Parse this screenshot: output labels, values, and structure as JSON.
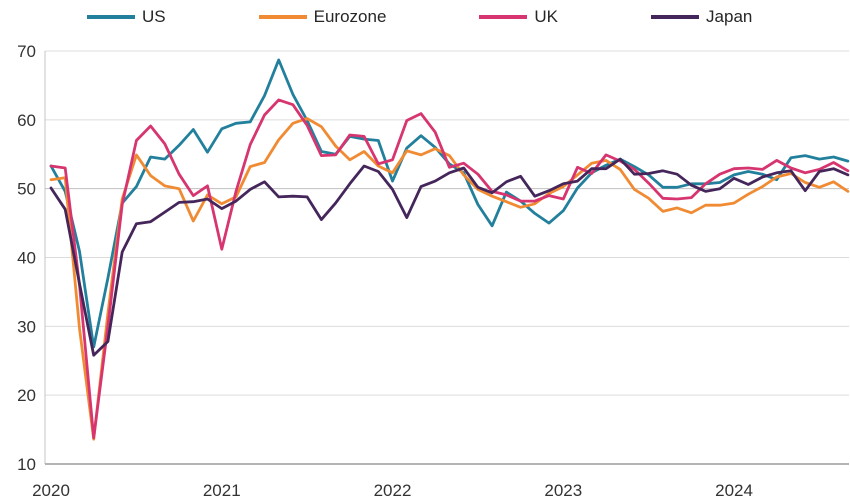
{
  "chart_data": {
    "type": "line",
    "title": "",
    "frequency": "monthly",
    "x_start": "2020-01",
    "x_end": "2024-09",
    "x_tick_labels": [
      "2020",
      "2021",
      "2022",
      "2023",
      "2024"
    ],
    "x_tick_month_indexes": [
      0,
      12,
      24,
      36,
      48
    ],
    "y_ticks": [
      10,
      20,
      30,
      40,
      50,
      60,
      70
    ],
    "ylim": [
      10,
      70
    ],
    "grid": "horizontal",
    "threshold_gridline": 50,
    "legend_position": "top",
    "series": [
      {
        "name": "US",
        "color": "#22809c",
        "values": [
          53.3,
          49.6,
          40.9,
          27.0,
          37.0,
          47.9,
          50.3,
          54.6,
          54.3,
          56.3,
          58.6,
          55.3,
          58.7,
          59.5,
          59.7,
          63.5,
          68.7,
          63.7,
          59.9,
          55.4,
          55.0,
          57.6,
          57.2,
          57.0,
          51.1,
          55.9,
          57.7,
          56.0,
          53.6,
          52.3,
          47.7,
          44.6,
          49.5,
          48.2,
          46.4,
          45.0,
          46.8,
          50.1,
          52.3,
          53.4,
          54.3,
          53.2,
          52.0,
          50.2,
          50.2,
          50.7,
          50.7,
          50.9,
          52.0,
          52.5,
          52.1,
          51.3,
          54.5,
          54.8,
          54.3,
          54.6,
          54.0
        ]
      },
      {
        "name": "Eurozone",
        "color": "#f08b33",
        "values": [
          51.3,
          51.6,
          29.7,
          13.6,
          31.9,
          48.5,
          54.9,
          51.9,
          50.4,
          50.0,
          45.3,
          49.1,
          47.8,
          48.8,
          53.2,
          53.8,
          57.1,
          59.5,
          60.2,
          59.0,
          56.2,
          54.2,
          55.4,
          53.3,
          52.3,
          55.5,
          54.9,
          55.8,
          54.8,
          52.0,
          49.9,
          48.9,
          48.1,
          47.3,
          47.8,
          49.3,
          50.3,
          52.0,
          53.7,
          54.1,
          52.8,
          49.9,
          48.6,
          46.7,
          47.2,
          46.5,
          47.6,
          47.6,
          47.9,
          49.2,
          50.3,
          51.7,
          52.2,
          50.9,
          50.2,
          51.0,
          49.6
        ]
      },
      {
        "name": "UK",
        "color": "#d73570",
        "values": [
          53.3,
          53.0,
          36.0,
          13.8,
          30.0,
          47.7,
          57.0,
          59.1,
          56.5,
          52.1,
          49.0,
          50.4,
          41.2,
          49.6,
          56.4,
          60.7,
          62.9,
          62.2,
          59.2,
          54.8,
          54.9,
          57.8,
          57.6,
          53.6,
          54.2,
          59.9,
          60.9,
          58.2,
          53.1,
          53.7,
          52.1,
          49.6,
          49.1,
          48.2,
          48.2,
          49.0,
          48.5,
          53.1,
          52.2,
          54.9,
          54.0,
          52.8,
          50.8,
          48.6,
          48.5,
          48.7,
          50.7,
          52.1,
          52.9,
          53.0,
          52.8,
          54.1,
          53.0,
          52.3,
          52.8,
          53.8,
          52.6
        ]
      },
      {
        "name": "Japan",
        "color": "#45265b",
        "values": [
          50.1,
          47.0,
          36.2,
          25.8,
          27.8,
          40.8,
          44.9,
          45.2,
          46.6,
          48.0,
          48.1,
          48.5,
          47.1,
          48.2,
          49.9,
          51.0,
          48.8,
          48.9,
          48.8,
          45.5,
          47.9,
          50.7,
          53.3,
          52.5,
          49.9,
          45.8,
          50.3,
          51.1,
          52.3,
          53.0,
          50.2,
          49.4,
          51.0,
          51.8,
          48.9,
          49.7,
          50.7,
          51.1,
          52.9,
          52.9,
          54.3,
          52.1,
          52.2,
          52.6,
          52.1,
          50.5,
          49.6,
          50.0,
          51.5,
          50.6,
          51.7,
          52.3,
          52.6,
          49.7,
          52.5,
          52.9,
          52.0
        ]
      }
    ]
  },
  "colors": {
    "axis_line": "#9b9b9b",
    "left_axis_line": "#c4c4c4",
    "gridline": "#dcdcdc",
    "gridline_50": "#c0c0c0",
    "tick_label": "#333333",
    "legend_label": "#262626"
  }
}
